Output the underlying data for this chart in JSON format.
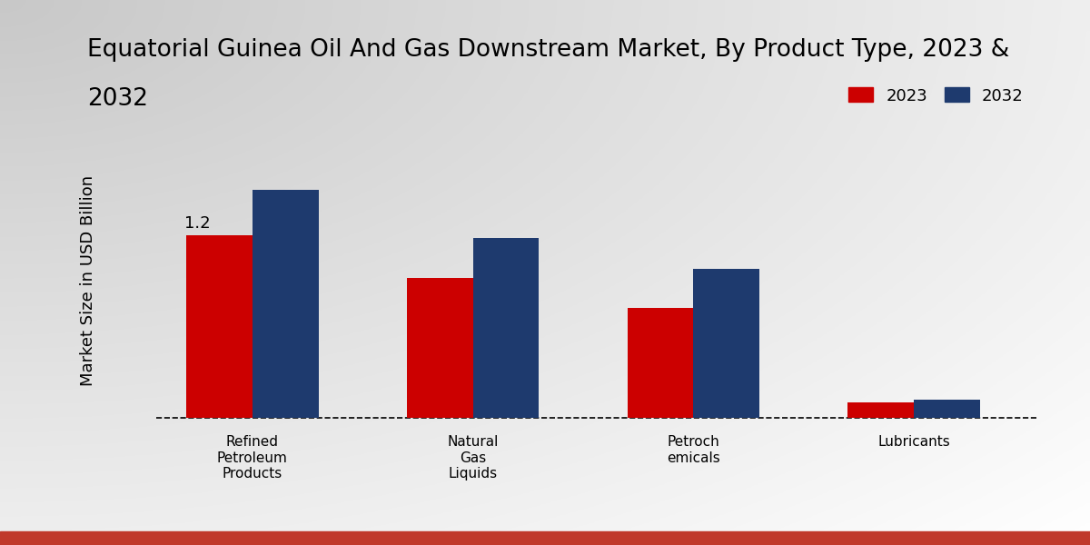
{
  "title_line1": "Equatorial Guinea Oil And Gas Downstream Market, By Product Type, 2023 &",
  "title_line2": "2032",
  "ylabel": "Market Size in USD Billion",
  "categories": [
    "Refined\nPetroleum\nProducts",
    "Natural\nGas\nLiquids",
    "Petroch\nemicals",
    "Lubricants"
  ],
  "values_2023": [
    1.2,
    0.92,
    0.72,
    0.1
  ],
  "values_2032": [
    1.5,
    1.18,
    0.98,
    0.115
  ],
  "color_2023": "#cc0000",
  "color_2032": "#1e3a6e",
  "bar_width": 0.3,
  "annotation_text": "1.2",
  "annotation_cat_idx": 0,
  "ylim_min": -0.05,
  "ylim_max": 1.85,
  "dashed_line_y": 0.0,
  "legend_2023": "2023",
  "legend_2032": "2032",
  "title_fontsize": 19,
  "axis_label_fontsize": 13,
  "tick_fontsize": 11,
  "legend_fontsize": 13,
  "bg_color_tl": "#c8c8c8",
  "bg_color_br": "#f0f0f0",
  "bottom_bar_color": "#c0392b"
}
